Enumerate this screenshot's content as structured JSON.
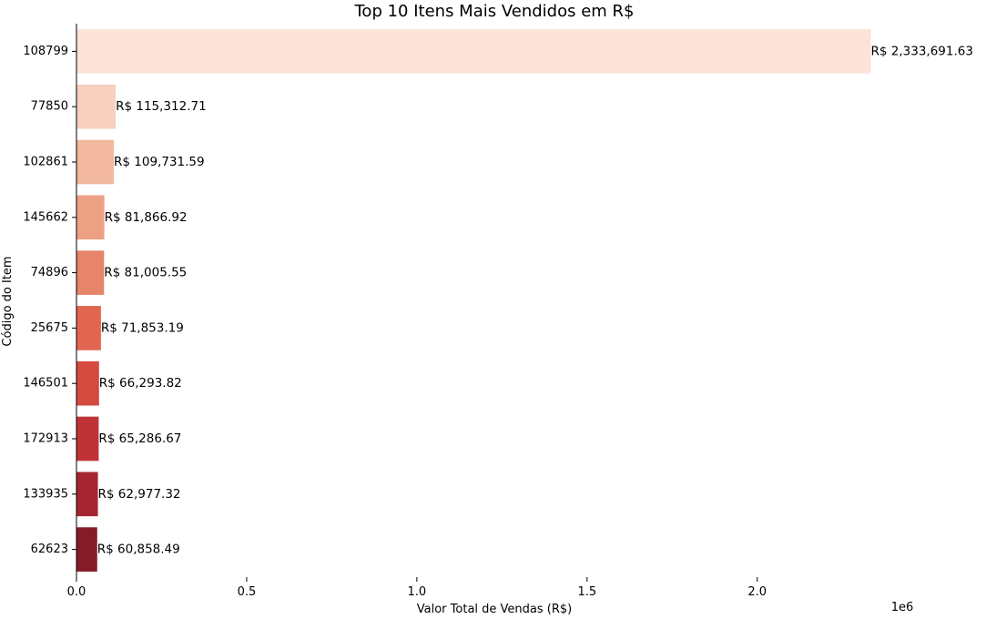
{
  "chart_data": {
    "type": "bar",
    "orientation": "horizontal",
    "title": "Top 10 Itens Mais Vendidos em R$",
    "xlabel": "Valor Total de Vendas (R$)",
    "ylabel": "Código do Item",
    "x_offset_label": "1e6",
    "xlim": [
      0,
      2450000
    ],
    "x_ticks": [
      0,
      500000,
      1000000,
      1500000,
      2000000
    ],
    "x_tick_labels": [
      "0.0",
      "0.5",
      "1.0",
      "1.5",
      "2.0"
    ],
    "grid": false,
    "categories": [
      "108799",
      "77850",
      "102861",
      "145662",
      "74896",
      "25675",
      "146501",
      "172913",
      "133935",
      "62623"
    ],
    "values": [
      2333691.63,
      115312.71,
      109731.59,
      81866.92,
      81005.55,
      71853.19,
      66293.82,
      65286.67,
      62977.32,
      60858.49
    ],
    "value_labels": [
      "R$ 2,333,691.63",
      "R$ 115,312.71",
      "R$ 109,731.59",
      "R$ 81,866.92",
      "R$ 81,005.55",
      "R$ 71,853.19",
      "R$ 66,293.82",
      "R$ 65,286.67",
      "R$ 62,977.32",
      "R$ 60,858.49"
    ],
    "colors": [
      "#fbe3da",
      "#f7d0c0",
      "#f2b8a0",
      "#eda184",
      "#e68569",
      "#e06650",
      "#d54a3f",
      "#bf3337",
      "#a52630",
      "#851b27"
    ]
  }
}
